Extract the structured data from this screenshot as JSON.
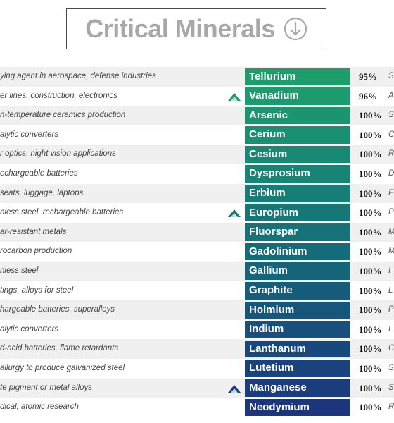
{
  "title": "Critical Minerals",
  "icon": "arrow-down-circle-icon",
  "minerals": [
    {
      "use": "ying agent in aerospace, defense industries",
      "name": "Tellurium",
      "pct": "95%",
      "src": "S",
      "color": "#1e9d6c",
      "marker": false
    },
    {
      "use": "er lines, construction, electronics",
      "name": "Vanadium",
      "pct": "96%",
      "src": "A",
      "color": "#1d9a6e",
      "marker": true
    },
    {
      "use": "n-temperature ceramics production",
      "name": "Arsenic",
      "pct": "100%",
      "src": "S",
      "color": "#1b9570",
      "marker": false
    },
    {
      "use": "alytic converters",
      "name": "Cerium",
      "pct": "100%",
      "src": "C",
      "color": "#1a9072",
      "marker": false
    },
    {
      "use": "r optics, night vision applications",
      "name": "Cesium",
      "pct": "100%",
      "src": "R",
      "color": "#188a73",
      "marker": false
    },
    {
      "use": "echargeable batteries",
      "name": "Dysprosium",
      "pct": "100%",
      "src": "D",
      "color": "#178475",
      "marker": false
    },
    {
      "use": "seats, luggage, laptops",
      "name": "Erbium",
      "pct": "100%",
      "src": "F",
      "color": "#167e76",
      "marker": false
    },
    {
      "use": "nless steel, rechargeable batteries",
      "name": "Europium",
      "pct": "100%",
      "src": "P",
      "color": "#157877",
      "marker": true
    },
    {
      "use": "ar-resistant metals",
      "name": "Fluorspar",
      "pct": "100%",
      "src": "M",
      "color": "#147278",
      "marker": false
    },
    {
      "use": "rocarbon production",
      "name": "Gadolinium",
      "pct": "100%",
      "src": "M",
      "color": "#146b79",
      "marker": false
    },
    {
      "use": "nless steel",
      "name": "Gallium",
      "pct": "100%",
      "src": "I",
      "color": "#15647a",
      "marker": false
    },
    {
      "use": "tings, alloys for steel",
      "name": "Graphite",
      "pct": "100%",
      "src": "L",
      "color": "#165d7b",
      "marker": false
    },
    {
      "use": "hargeable batteries, superalloys",
      "name": "Holmium",
      "pct": "100%",
      "src": "P",
      "color": "#17567b",
      "marker": false
    },
    {
      "use": "alytic converters",
      "name": "Indium",
      "pct": "100%",
      "src": "L",
      "color": "#184f7c",
      "marker": false
    },
    {
      "use": "d-acid batteries, flame retardants",
      "name": "Lanthanum",
      "pct": "100%",
      "src": "C",
      "color": "#19487c",
      "marker": false
    },
    {
      "use": "allurgy to produce galvanized steel",
      "name": "Lutetium",
      "pct": "100%",
      "src": "S",
      "color": "#1a427d",
      "marker": false
    },
    {
      "use": "te pigment or metal alloys",
      "name": "Manganese",
      "pct": "100%",
      "src": "S",
      "color": "#1b3c7d",
      "marker": true
    },
    {
      "use": "dical, atomic research",
      "name": "Neodymium",
      "pct": "100%",
      "src": "R",
      "color": "#1c367c",
      "marker": false
    }
  ]
}
